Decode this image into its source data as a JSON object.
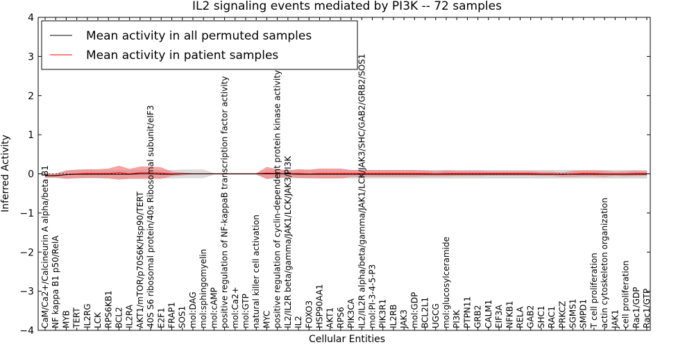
{
  "chart_data": {
    "type": "line",
    "title": "IL2 signaling events mediated by PI3K -- 72 samples",
    "xlabel": "Cellular Entities",
    "ylabel": "Inferred Activity",
    "ylim": [
      -4,
      4
    ],
    "yticks": [
      -4,
      -3,
      -2,
      -1,
      0,
      1,
      2,
      3,
      4
    ],
    "ytick_labels": [
      "−4",
      "−3",
      "−2",
      "−1",
      "0",
      "1",
      "2",
      "3",
      "4"
    ],
    "grid": false,
    "legend_position": "top-left",
    "categories": [
      "CaM/Ca2+/Calcineurin A alpha/beta B1",
      "NF kappa B1 p50/RelA",
      "MYB",
      "TERT",
      "IL2RG",
      "LCK",
      "RPS6KB1",
      "BCL2",
      "IL2RA",
      "AKT1/mTOR/p70S6K/Hsp90/TERT",
      "40S S6 ribosomal protein/40s Ribosomal subunit/eIF3",
      "E2F1",
      "FRAP1",
      "SOS1",
      "mol:DAG",
      "mol:sphingomyelin",
      "mol:cAMP",
      "positive regulation of NF-kappaB transcription factor activity",
      "mol:Ca2+",
      "mol:GTP",
      "natural killer cell activation",
      "MYC",
      "positive regulation of cyclin-dependent protein kinase activity",
      "IL2/IL2R beta/gamma/JAK1/LCK/JAK3/PI3K",
      "IL2",
      "FOXO3",
      "HSP90AA1",
      "AKT1",
      "RPS6",
      "PIK3CA",
      "IL2/IL2R alpha/beta/gamma/JAK1/LCK/JAK3/SHC/GAB2/GRB2/SOS1",
      "mol:PI-3-4-5-P3",
      "PIK3R1",
      "IL2RB",
      "JAK3",
      "mol:GDP",
      "BCL2L1",
      "UGCG",
      "mol:glucosylceramide",
      "PI3K",
      "PTPN11",
      "GRB2",
      "CALM1",
      "EIF3A",
      "NFKB1",
      "RELA",
      "GAB2",
      "SHC1",
      "RAC1",
      "PRKCZ",
      "SGMS1",
      "SMPD1",
      "T cell proliferation",
      "actin cytoskeleton organization",
      "JAK1",
      "cell proliferation",
      "Rac1/GDP",
      "Rac1/GTP"
    ],
    "series": [
      {
        "name": "Mean activity in all permuted samples",
        "color": "#000000",
        "band_color": "#bfbfbf",
        "values": [
          -0.05,
          -0.05,
          -0.02,
          -0.01,
          -0.01,
          -0.01,
          -0.01,
          -0.01,
          -0.01,
          0.0,
          0.0,
          -0.01,
          -0.01,
          0.0,
          0.0,
          0.0,
          0.0,
          0.0,
          0.0,
          0.0,
          0.0,
          0.0,
          0.0,
          0.0,
          -0.01,
          -0.01,
          -0.01,
          -0.01,
          -0.01,
          -0.01,
          -0.01,
          -0.01,
          -0.01,
          -0.01,
          -0.01,
          -0.01,
          -0.01,
          -0.01,
          -0.01,
          -0.01,
          -0.01,
          -0.01,
          -0.01,
          -0.01,
          -0.01,
          -0.01,
          -0.01,
          -0.01,
          -0.01,
          -0.01,
          -0.01,
          -0.01,
          -0.01,
          -0.01,
          -0.01,
          -0.01,
          -0.01,
          -0.01
        ],
        "band": [
          0.05,
          0.05,
          0.1,
          0.1,
          0.1,
          0.1,
          0.1,
          0.1,
          0.1,
          0.1,
          0.1,
          0.1,
          0.1,
          0.1,
          0.1,
          0.1,
          0.01,
          0.01,
          0.01,
          0.01,
          0.01,
          0.1,
          0.1,
          0.1,
          0.1,
          0.1,
          0.1,
          0.1,
          0.1,
          0.1,
          0.1,
          0.1,
          0.1,
          0.1,
          0.1,
          0.1,
          0.1,
          0.1,
          0.1,
          0.1,
          0.1,
          0.1,
          0.1,
          0.1,
          0.1,
          0.1,
          0.1,
          0.1,
          0.1,
          0.1,
          0.1,
          0.1,
          0.1,
          0.1,
          0.1,
          0.1,
          0.1,
          0.1
        ]
      },
      {
        "name": "Mean activity in patient samples",
        "color": "#ff0000",
        "band_color": "#f08080",
        "values": [
          -0.05,
          -0.04,
          -0.02,
          0.0,
          0.01,
          0.01,
          0.01,
          0.03,
          0.0,
          0.03,
          0.03,
          0.02,
          0.0,
          0.0,
          0.0,
          0.0,
          0.0,
          0.0,
          0.0,
          0.0,
          0.0,
          0.02,
          0.01,
          0.0,
          0.01,
          0.0,
          0.01,
          0.01,
          0.01,
          0.01,
          0.01,
          0.01,
          0.01,
          0.01,
          0.01,
          0.01,
          0.01,
          0.0,
          0.01,
          0.01,
          0.01,
          0.01,
          0.01,
          0.01,
          0.01,
          0.01,
          0.01,
          0.0,
          0.0,
          -0.02,
          0.0,
          0.01,
          0.01,
          0.0,
          0.0,
          0.0,
          0.01,
          0.01
        ],
        "band": [
          0.04,
          0.04,
          0.1,
          0.1,
          0.1,
          0.1,
          0.12,
          0.17,
          0.12,
          0.15,
          0.15,
          0.14,
          0.05,
          0.03,
          0.01,
          0.01,
          0.01,
          0.01,
          0.01,
          0.01,
          0.01,
          0.15,
          0.1,
          0.08,
          0.1,
          0.1,
          0.12,
          0.12,
          0.12,
          0.08,
          0.08,
          0.08,
          0.08,
          0.08,
          0.08,
          0.08,
          0.07,
          0.06,
          0.07,
          0.06,
          0.06,
          0.06,
          0.05,
          0.05,
          0.05,
          0.05,
          0.05,
          0.05,
          0.05,
          0.05,
          0.07,
          0.07,
          0.07,
          0.07,
          0.05,
          0.06,
          0.06,
          0.05
        ]
      }
    ]
  }
}
